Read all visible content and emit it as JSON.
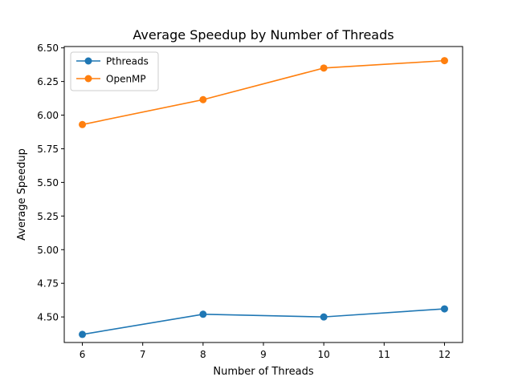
{
  "chart_data": {
    "type": "line",
    "title": "Average Speedup by Number of Threads",
    "xlabel": "Number of Threads",
    "ylabel": "Average Speedup",
    "x": [
      6,
      8,
      10,
      12
    ],
    "xlim": [
      5.7,
      12.3
    ],
    "ylim": [
      4.31,
      6.51
    ],
    "xticks": [
      6,
      7,
      8,
      9,
      10,
      11,
      12
    ],
    "yticks": [
      "4.50",
      "4.75",
      "5.00",
      "5.25",
      "5.50",
      "5.75",
      "6.00",
      "6.25",
      "6.50"
    ],
    "grid": false,
    "legend_position": "upper-left",
    "series": [
      {
        "name": "Pthreads",
        "color": "#1f77b4",
        "values": [
          4.37,
          4.52,
          4.5,
          4.56
        ]
      },
      {
        "name": "OpenMP",
        "color": "#ff7f0e",
        "values": [
          5.93,
          6.115,
          6.35,
          6.405
        ]
      }
    ]
  }
}
